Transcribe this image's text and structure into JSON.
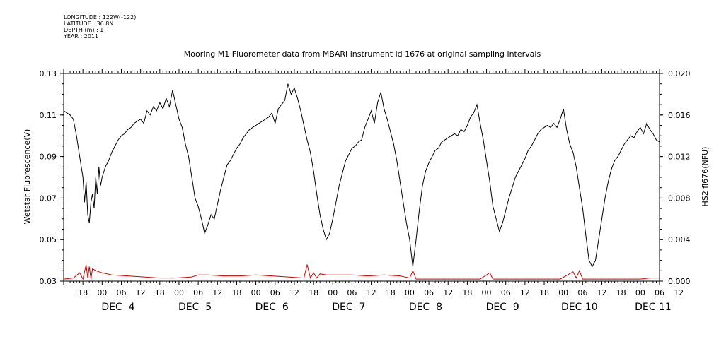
{
  "header": {
    "lines": [
      "LONGITUDE : 122W(-122)",
      "LATITUDE : 36.8N",
      "DEPTH (m) : 1",
      "YEAR : 2011"
    ]
  },
  "colors": {
    "primary": "#000000",
    "secondary": "#cc0000"
  },
  "chart_data": {
    "type": "line",
    "title": "Mooring M1 Fluorometer data from MBARI instrument id 1676 at original sampling intervals",
    "ylabel": "Wetstar Fluorescence(V)",
    "y2label": "HS2 fl676(NFU)",
    "xunit": "hour from Dec 3 12:00",
    "xlim": [
      0,
      186
    ],
    "ylim": [
      0.03,
      0.13
    ],
    "y2lim": [
      0.0,
      0.02
    ],
    "yticks": [
      "0.03",
      "0.05",
      "0.07",
      "0.09",
      "0.11",
      "0.13"
    ],
    "y2ticks": [
      "0.000",
      "0.004",
      "0.008",
      "0.012",
      "0.016",
      "0.020"
    ],
    "xtick_labels": [
      "18",
      "00",
      "06",
      "12",
      "18",
      "00",
      "06",
      "12",
      "18",
      "00",
      "06",
      "12",
      "18",
      "00",
      "06",
      "12",
      "18",
      "00",
      "06",
      "12",
      "18",
      "00",
      "06",
      "12",
      "18",
      "00",
      "06",
      "12",
      "18",
      "00",
      "06",
      "12"
    ],
    "day_labels": [
      {
        "text": "DEC  4",
        "x": 17
      },
      {
        "text": "DEC  5",
        "x": 41
      },
      {
        "text": "DEC  6",
        "x": 65
      },
      {
        "text": "DEC  7",
        "x": 89
      },
      {
        "text": "DEC  8",
        "x": 113
      },
      {
        "text": "DEC  9",
        "x": 137
      },
      {
        "text": "DEC 10",
        "x": 161
      },
      {
        "text": "DEC 11",
        "x": 184
      }
    ],
    "series": [
      {
        "color": "#000000",
        "axis": "left",
        "points": [
          [
            0,
            0.112
          ],
          [
            2,
            0.11
          ],
          [
            3,
            0.108
          ],
          [
            4,
            0.1
          ],
          [
            5,
            0.09
          ],
          [
            6,
            0.08
          ],
          [
            6.5,
            0.068
          ],
          [
            7,
            0.078
          ],
          [
            7.5,
            0.062
          ],
          [
            8,
            0.058
          ],
          [
            8.5,
            0.068
          ],
          [
            9,
            0.072
          ],
          [
            9.5,
            0.065
          ],
          [
            10,
            0.08
          ],
          [
            10.5,
            0.072
          ],
          [
            11,
            0.085
          ],
          [
            11.5,
            0.076
          ],
          [
            12,
            0.08
          ],
          [
            13,
            0.085
          ],
          [
            14,
            0.088
          ],
          [
            15,
            0.092
          ],
          [
            16,
            0.095
          ],
          [
            17,
            0.098
          ],
          [
            18,
            0.1
          ],
          [
            19,
            0.101
          ],
          [
            20,
            0.103
          ],
          [
            21,
            0.104
          ],
          [
            22,
            0.106
          ],
          [
            23,
            0.107
          ],
          [
            24,
            0.108
          ],
          [
            25,
            0.106
          ],
          [
            26,
            0.112
          ],
          [
            27,
            0.11
          ],
          [
            28,
            0.114
          ],
          [
            29,
            0.112
          ],
          [
            30,
            0.116
          ],
          [
            31,
            0.113
          ],
          [
            32,
            0.118
          ],
          [
            33,
            0.114
          ],
          [
            34,
            0.122
          ],
          [
            35,
            0.115
          ],
          [
            36,
            0.108
          ],
          [
            37,
            0.104
          ],
          [
            38,
            0.096
          ],
          [
            39,
            0.09
          ],
          [
            40,
            0.08
          ],
          [
            41,
            0.07
          ],
          [
            42,
            0.066
          ],
          [
            43,
            0.06
          ],
          [
            44,
            0.053
          ],
          [
            45,
            0.057
          ],
          [
            46,
            0.062
          ],
          [
            47,
            0.06
          ],
          [
            48,
            0.067
          ],
          [
            49,
            0.074
          ],
          [
            50,
            0.08
          ],
          [
            51,
            0.086
          ],
          [
            52,
            0.088
          ],
          [
            53,
            0.091
          ],
          [
            54,
            0.094
          ],
          [
            55,
            0.096
          ],
          [
            56,
            0.099
          ],
          [
            57,
            0.101
          ],
          [
            58,
            0.103
          ],
          [
            59,
            0.104
          ],
          [
            60,
            0.105
          ],
          [
            61,
            0.106
          ],
          [
            62,
            0.107
          ],
          [
            63,
            0.108
          ],
          [
            64,
            0.109
          ],
          [
            65,
            0.111
          ],
          [
            66,
            0.106
          ],
          [
            67,
            0.113
          ],
          [
            68,
            0.115
          ],
          [
            69,
            0.117
          ],
          [
            70,
            0.125
          ],
          [
            71,
            0.12
          ],
          [
            72,
            0.123
          ],
          [
            73,
            0.118
          ],
          [
            74,
            0.112
          ],
          [
            75,
            0.105
          ],
          [
            76,
            0.098
          ],
          [
            77,
            0.092
          ],
          [
            78,
            0.083
          ],
          [
            79,
            0.072
          ],
          [
            80,
            0.062
          ],
          [
            81,
            0.055
          ],
          [
            82,
            0.05
          ],
          [
            83,
            0.053
          ],
          [
            84,
            0.06
          ],
          [
            85,
            0.068
          ],
          [
            86,
            0.076
          ],
          [
            87,
            0.082
          ],
          [
            88,
            0.088
          ],
          [
            89,
            0.091
          ],
          [
            90,
            0.094
          ],
          [
            91,
            0.095
          ],
          [
            92,
            0.097
          ],
          [
            93,
            0.098
          ],
          [
            94,
            0.104
          ],
          [
            95,
            0.108
          ],
          [
            96,
            0.112
          ],
          [
            97,
            0.106
          ],
          [
            98,
            0.116
          ],
          [
            99,
            0.121
          ],
          [
            100,
            0.113
          ],
          [
            101,
            0.108
          ],
          [
            102,
            0.102
          ],
          [
            103,
            0.096
          ],
          [
            104,
            0.088
          ],
          [
            105,
            0.078
          ],
          [
            106,
            0.068
          ],
          [
            107,
            0.058
          ],
          [
            108,
            0.05
          ],
          [
            109,
            0.037
          ],
          [
            110,
            0.05
          ],
          [
            111,
            0.064
          ],
          [
            112,
            0.076
          ],
          [
            113,
            0.083
          ],
          [
            114,
            0.087
          ],
          [
            115,
            0.09
          ],
          [
            116,
            0.093
          ],
          [
            117,
            0.094
          ],
          [
            118,
            0.097
          ],
          [
            119,
            0.098
          ],
          [
            120,
            0.099
          ],
          [
            121,
            0.1
          ],
          [
            122,
            0.101
          ],
          [
            123,
            0.1
          ],
          [
            124,
            0.103
          ],
          [
            125,
            0.102
          ],
          [
            126,
            0.105
          ],
          [
            127,
            0.109
          ],
          [
            128,
            0.111
          ],
          [
            129,
            0.115
          ],
          [
            130,
            0.106
          ],
          [
            131,
            0.098
          ],
          [
            132,
            0.088
          ],
          [
            133,
            0.078
          ],
          [
            134,
            0.066
          ],
          [
            135,
            0.06
          ],
          [
            136,
            0.054
          ],
          [
            137,
            0.058
          ],
          [
            138,
            0.064
          ],
          [
            139,
            0.07
          ],
          [
            140,
            0.075
          ],
          [
            141,
            0.08
          ],
          [
            142,
            0.083
          ],
          [
            143,
            0.086
          ],
          [
            144,
            0.089
          ],
          [
            145,
            0.093
          ],
          [
            146,
            0.095
          ],
          [
            147,
            0.098
          ],
          [
            148,
            0.101
          ],
          [
            149,
            0.103
          ],
          [
            150,
            0.104
          ],
          [
            151,
            0.105
          ],
          [
            152,
            0.104
          ],
          [
            153,
            0.106
          ],
          [
            154,
            0.104
          ],
          [
            155,
            0.108
          ],
          [
            156,
            0.113
          ],
          [
            157,
            0.103
          ],
          [
            158,
            0.096
          ],
          [
            159,
            0.092
          ],
          [
            160,
            0.085
          ],
          [
            161,
            0.075
          ],
          [
            162,
            0.065
          ],
          [
            163,
            0.052
          ],
          [
            164,
            0.04
          ],
          [
            165,
            0.037
          ],
          [
            166,
            0.04
          ],
          [
            167,
            0.05
          ],
          [
            168,
            0.06
          ],
          [
            169,
            0.07
          ],
          [
            170,
            0.078
          ],
          [
            171,
            0.084
          ],
          [
            172,
            0.088
          ],
          [
            173,
            0.09
          ],
          [
            174,
            0.093
          ],
          [
            175,
            0.096
          ],
          [
            176,
            0.098
          ],
          [
            177,
            0.1
          ],
          [
            178,
            0.099
          ],
          [
            179,
            0.102
          ],
          [
            180,
            0.104
          ],
          [
            181,
            0.101
          ],
          [
            182,
            0.106
          ],
          [
            183,
            0.103
          ],
          [
            184,
            0.101
          ],
          [
            185,
            0.098
          ],
          [
            186,
            0.097
          ]
        ]
      },
      {
        "color": "#cc0000",
        "axis": "right",
        "points": [
          [
            0,
            0.0002
          ],
          [
            3,
            0.0003
          ],
          [
            5,
            0.0008
          ],
          [
            6,
            0.0002
          ],
          [
            7,
            0.0016
          ],
          [
            7.5,
            0.0003
          ],
          [
            8,
            0.0014
          ],
          [
            8.5,
            0.0002
          ],
          [
            9,
            0.0012
          ],
          [
            10,
            0.001
          ],
          [
            12,
            0.0008
          ],
          [
            15,
            0.0006
          ],
          [
            20,
            0.0005
          ],
          [
            25,
            0.0004
          ],
          [
            30,
            0.0003
          ],
          [
            35,
            0.0003
          ],
          [
            40,
            0.0004
          ],
          [
            42,
            0.0006
          ],
          [
            45,
            0.0006
          ],
          [
            50,
            0.0005
          ],
          [
            55,
            0.0005
          ],
          [
            60,
            0.0006
          ],
          [
            65,
            0.0005
          ],
          [
            70,
            0.0004
          ],
          [
            75,
            0.0003
          ],
          [
            76,
            0.0016
          ],
          [
            77,
            0.0003
          ],
          [
            78,
            0.0008
          ],
          [
            79,
            0.0003
          ],
          [
            80,
            0.0007
          ],
          [
            82,
            0.0006
          ],
          [
            85,
            0.0006
          ],
          [
            90,
            0.0006
          ],
          [
            95,
            0.0005
          ],
          [
            100,
            0.0006
          ],
          [
            105,
            0.0005
          ],
          [
            108,
            0.0003
          ],
          [
            109,
            0.001
          ],
          [
            110,
            0.0002
          ],
          [
            115,
            0.0002
          ],
          [
            120,
            0.0002
          ],
          [
            125,
            0.0002
          ],
          [
            130,
            0.0002
          ],
          [
            133,
            0.0008
          ],
          [
            134,
            0.0002
          ],
          [
            140,
            0.0002
          ],
          [
            145,
            0.0002
          ],
          [
            150,
            0.0002
          ],
          [
            155,
            0.0002
          ],
          [
            159,
            0.0009
          ],
          [
            160,
            0.0003
          ],
          [
            161,
            0.001
          ],
          [
            162,
            0.0002
          ],
          [
            164,
            0.0002
          ],
          [
            170,
            0.0002
          ],
          [
            175,
            0.0002
          ],
          [
            180,
            0.0002
          ],
          [
            183,
            0.0003
          ],
          [
            186,
            0.0003
          ]
        ]
      }
    ]
  }
}
